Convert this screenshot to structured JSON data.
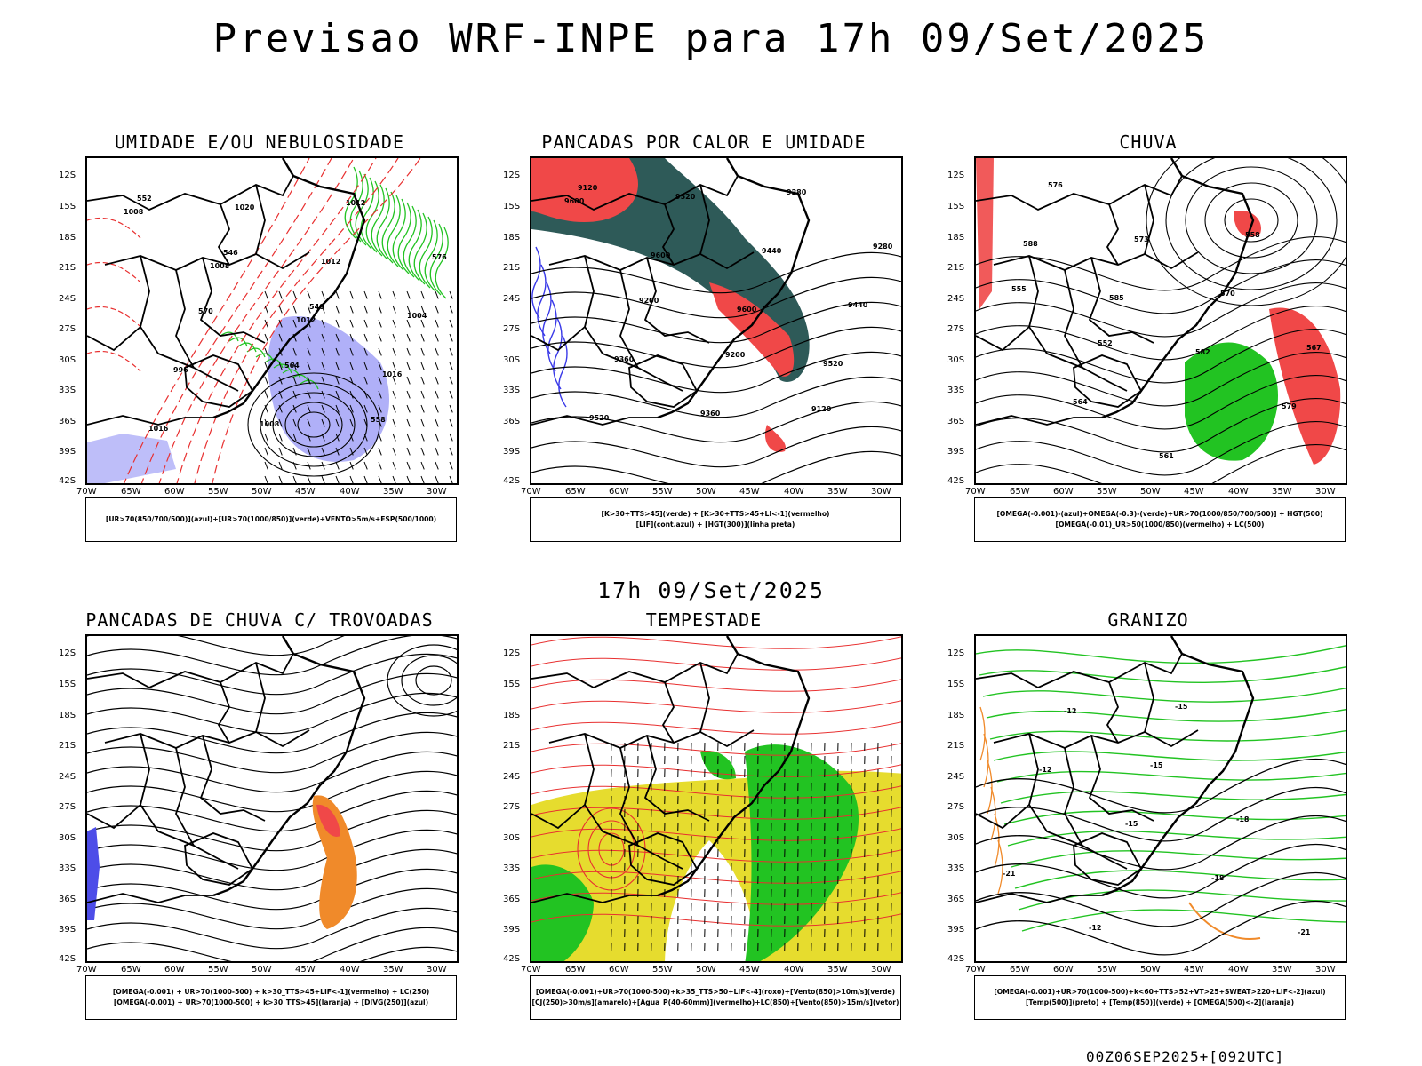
{
  "title": "Previsao WRF-INPE  para 17h 09/Set/2025",
  "mid_title": "17h 09/Set/2025",
  "footer": "00Z06SEP2025+[092UTC]",
  "axes": {
    "lat_labels": [
      "12S",
      "15S",
      "18S",
      "21S",
      "24S",
      "27S",
      "30S",
      "33S",
      "36S",
      "39S",
      "42S"
    ],
    "lon_labels": [
      "70W",
      "65W",
      "60W",
      "55W",
      "50W",
      "45W",
      "40W",
      "35W",
      "30W"
    ]
  },
  "colors": {
    "blue": "#6f6ff2",
    "green": "#22c322",
    "red": "#f04040",
    "teal": "#2e5a58",
    "yellow": "#e6dc2e",
    "orange": "#f08a2a"
  },
  "panels": [
    {
      "title": "UMIDADE E/OU NEBULOSIDADE",
      "legend": [
        "[UR>70(850/700/500)](azul)+[UR>70(1000/850)](verde)+VENTO>5m/s+ESP(500/1000)"
      ],
      "contour_labels": [
        "1008",
        "1008",
        "1012",
        "1016",
        "1016",
        "1020",
        "1012",
        "1004",
        "996",
        "1008",
        "1012",
        "576",
        "570",
        "564",
        "558",
        "552",
        "546",
        "540"
      ]
    },
    {
      "title": "PANCADAS POR CALOR E UMIDADE",
      "legend": [
        "[K>30+TTS>45](verde) + [K>30+TTS>45+LI<-1](vermelho)",
        "[LIF](cont.azul) + [HGT(300)](linha preta)"
      ],
      "contour_labels": [
        "9600",
        "9600",
        "9600",
        "9520",
        "9520",
        "9520",
        "9440",
        "9440",
        "9360",
        "9360",
        "9280",
        "9280",
        "9200",
        "9200",
        "9120",
        "9120"
      ]
    },
    {
      "title": "CHUVA",
      "legend": [
        "[OMEGA(-0.001)-(azul)+OMEGA(-0.3)-(verde)+UR>70(1000/850/700/500)] + HGT(500)",
        "[OMEGA(-0.01)_UR>50(1000/850)(vermelho) + LC(500)"
      ],
      "contour_labels": [
        "588",
        "585",
        "582",
        "579",
        "576",
        "573",
        "570",
        "567",
        "564",
        "561",
        "558",
        "555",
        "552"
      ]
    },
    {
      "title": "PANCADAS DE CHUVA C/ TROVOADAS",
      "legend": [
        "[OMEGA(-0.001) + UR>70(1000-500) + k>30_TTS>45+LIF<-1](vermelho) + LC(250)",
        "[OMEGA(-0.001) + UR>70(1000-500) + k>30_TTS>45](laranja) + [DIVG(250)](azul)"
      ],
      "contour_labels": []
    },
    {
      "title": "TEMPESTADE",
      "legend": [
        "[OMEGA(-0.001)+UR>70(1000-500)+k>35_TTS>50+LIF<-4](roxo)+[Vento(850)>10m/s](verde)",
        "[CJ(250)>30m/s](amarelo)+[Agua_P(40-60mm)](vermelho)+LC(850)+[Vento(850)>15m/s](vetor)"
      ],
      "contour_labels": []
    },
    {
      "title": "GRANIZO",
      "legend": [
        "[OMEGA(-0.001)+UR>70(1000-500)+k<60+TTS>52+VT>25+SWEAT>220+LIF<-2](azul)",
        "[Temp(500)](preto) + [Temp(850)](verde) + [OMEGA(500)<-2](laranja)"
      ],
      "contour_labels": [
        "-12",
        "-15",
        "-18",
        "-21",
        "-12",
        "-15",
        "-18",
        "-21",
        "-12",
        "-15"
      ]
    }
  ]
}
